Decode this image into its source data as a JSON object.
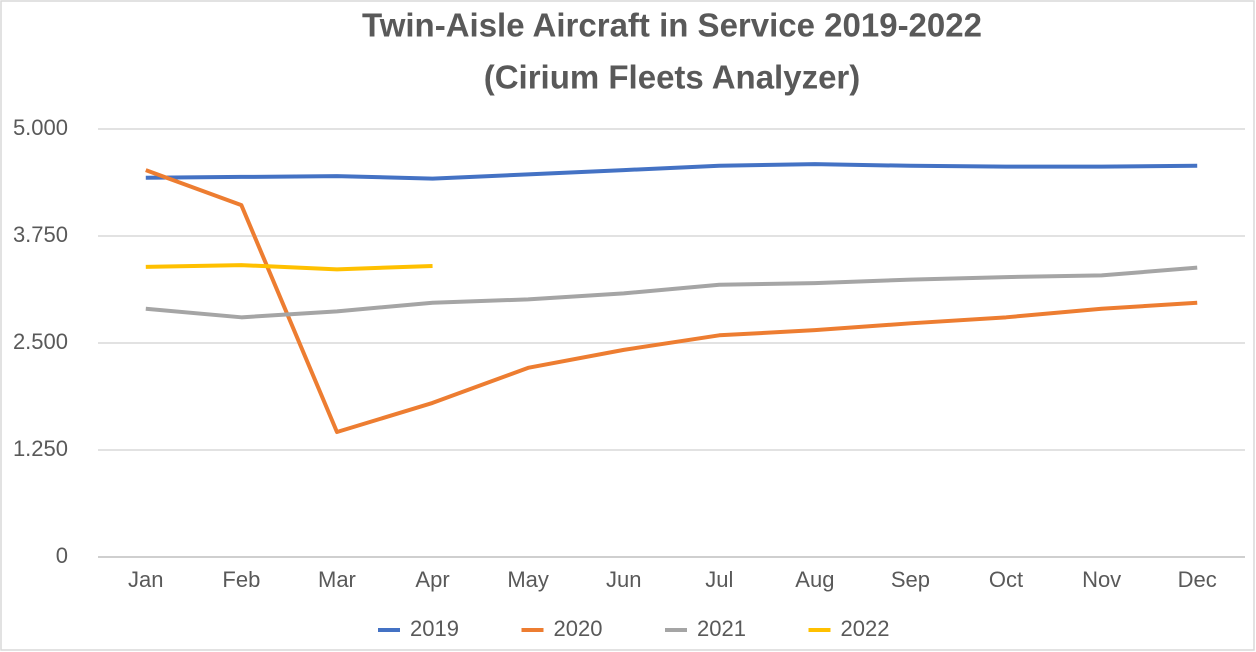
{
  "chart_data": {
    "type": "line",
    "title": "Twin-Aisle Aircraft in Service 2019-2022",
    "subtitle": "(Cirium Fleets Analyzer)",
    "categories": [
      "Jan",
      "Feb",
      "Mar",
      "Apr",
      "May",
      "Jun",
      "Jul",
      "Aug",
      "Sep",
      "Oct",
      "Nov",
      "Dec"
    ],
    "series": [
      {
        "name": "2019",
        "color": "#4472c4",
        "values": [
          4430,
          4440,
          4450,
          4420,
          4470,
          4520,
          4570,
          4590,
          4570,
          4560,
          4560,
          4570
        ]
      },
      {
        "name": "2020",
        "color": "#ed7d31",
        "values": [
          4520,
          4110,
          1460,
          1800,
          2210,
          2420,
          2590,
          2650,
          2730,
          2800,
          2900,
          2970
        ]
      },
      {
        "name": "2021",
        "color": "#a5a5a5",
        "values": [
          2900,
          2800,
          2870,
          2970,
          3010,
          3080,
          3180,
          3200,
          3240,
          3270,
          3290,
          3380
        ]
      },
      {
        "name": "2022",
        "color": "#ffc000",
        "values": [
          3390,
          3410,
          3360,
          3400,
          null,
          null,
          null,
          null,
          null,
          null,
          null,
          null
        ]
      }
    ],
    "ylim": [
      0,
      5000
    ],
    "yticks": [
      0,
      {
        "value": 1250,
        "label": "1.250"
      },
      {
        "value": 2500,
        "label": "2.500"
      },
      {
        "value": 3750,
        "label": "3.750"
      },
      {
        "value": 5000,
        "label": "5.000"
      }
    ],
    "grid": true,
    "legend": "bottom"
  }
}
